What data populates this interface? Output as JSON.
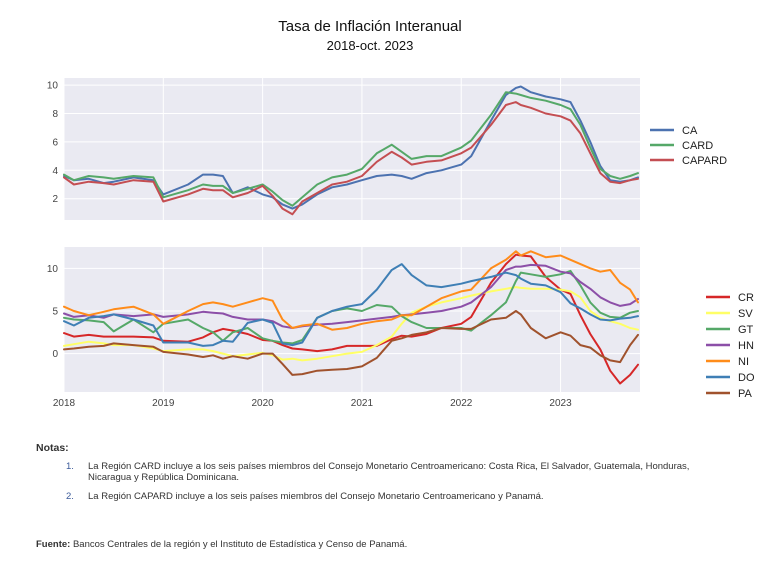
{
  "header": {
    "title": "Tasa de Inflación Interanual",
    "subtitle": "2018-oct. 2023"
  },
  "chart_data": [
    {
      "type": "line",
      "x_unit": "year",
      "x": [
        2018.0,
        2018.1,
        2018.25,
        2018.4,
        2018.5,
        2018.7,
        2018.9,
        2019.0,
        2019.25,
        2019.4,
        2019.5,
        2019.6,
        2019.7,
        2019.85,
        2020.0,
        2020.1,
        2020.2,
        2020.3,
        2020.4,
        2020.55,
        2020.7,
        2020.85,
        2021.0,
        2021.15,
        2021.3,
        2021.4,
        2021.5,
        2021.65,
        2021.8,
        2022.0,
        2022.1,
        2022.3,
        2022.45,
        2022.55,
        2022.6,
        2022.7,
        2022.85,
        2023.0,
        2023.1,
        2023.2,
        2023.3,
        2023.4,
        2023.5,
        2023.6,
        2023.7,
        2023.78
      ],
      "series": [
        {
          "name": "CA",
          "color": "#4c72b0",
          "values": [
            3.6,
            3.3,
            3.4,
            3.1,
            3.2,
            3.5,
            3.3,
            2.3,
            3.0,
            3.7,
            3.7,
            3.6,
            2.4,
            2.8,
            2.3,
            2.1,
            1.6,
            1.3,
            1.6,
            2.3,
            2.8,
            3.0,
            3.3,
            3.6,
            3.7,
            3.6,
            3.4,
            3.8,
            4.0,
            4.4,
            5.0,
            7.5,
            9.3,
            9.8,
            9.9,
            9.5,
            9.2,
            9.0,
            8.8,
            7.5,
            6.0,
            4.3,
            3.3,
            3.2,
            3.3,
            3.5
          ]
        },
        {
          "name": "CARD",
          "color": "#55a868",
          "values": [
            3.7,
            3.3,
            3.6,
            3.5,
            3.4,
            3.6,
            3.5,
            2.1,
            2.6,
            3.0,
            2.9,
            2.9,
            2.4,
            2.7,
            3.0,
            2.5,
            1.9,
            1.5,
            2.1,
            3.0,
            3.5,
            3.7,
            4.1,
            5.2,
            5.8,
            5.3,
            4.8,
            5.0,
            5.0,
            5.6,
            6.1,
            7.9,
            9.5,
            9.4,
            9.3,
            9.1,
            8.9,
            8.6,
            8.3,
            7.2,
            5.6,
            4.1,
            3.6,
            3.4,
            3.6,
            3.8
          ]
        },
        {
          "name": "CAPARD",
          "color": "#c44e52",
          "values": [
            3.5,
            3.0,
            3.2,
            3.1,
            3.0,
            3.3,
            3.2,
            1.8,
            2.3,
            2.7,
            2.6,
            2.6,
            2.1,
            2.4,
            2.9,
            2.2,
            1.3,
            0.9,
            1.8,
            2.4,
            3.0,
            3.2,
            3.6,
            4.6,
            5.3,
            4.9,
            4.4,
            4.6,
            4.7,
            5.2,
            5.6,
            7.2,
            8.6,
            8.8,
            8.6,
            8.4,
            8.0,
            7.8,
            7.5,
            6.6,
            5.2,
            3.8,
            3.2,
            3.1,
            3.3,
            3.4
          ]
        }
      ],
      "ylim": [
        0.5,
        10.5
      ],
      "yticks": [
        2,
        4,
        6,
        8,
        10
      ],
      "legend_position": "right"
    },
    {
      "type": "line",
      "x_unit": "year",
      "x": [
        2018.0,
        2018.1,
        2018.25,
        2018.4,
        2018.5,
        2018.7,
        2018.9,
        2019.0,
        2019.25,
        2019.4,
        2019.5,
        2019.6,
        2019.7,
        2019.85,
        2020.0,
        2020.1,
        2020.2,
        2020.3,
        2020.4,
        2020.55,
        2020.7,
        2020.85,
        2021.0,
        2021.15,
        2021.3,
        2021.4,
        2021.5,
        2021.65,
        2021.8,
        2022.0,
        2022.1,
        2022.3,
        2022.45,
        2022.55,
        2022.6,
        2022.7,
        2022.85,
        2023.0,
        2023.1,
        2023.2,
        2023.3,
        2023.4,
        2023.5,
        2023.6,
        2023.7,
        2023.78
      ],
      "series": [
        {
          "name": "CR",
          "color": "#d62728",
          "values": [
            2.4,
            2.0,
            2.2,
            2.0,
            2.0,
            2.0,
            1.9,
            1.5,
            1.4,
            1.9,
            2.5,
            2.9,
            2.7,
            2.3,
            1.6,
            1.5,
            1.0,
            0.6,
            0.5,
            0.3,
            0.5,
            0.9,
            0.9,
            0.9,
            1.7,
            2.1,
            2.0,
            2.3,
            3.0,
            3.5,
            4.3,
            8.3,
            10.5,
            11.6,
            11.5,
            11.4,
            9.0,
            7.5,
            7.0,
            4.5,
            2.3,
            0.5,
            -2.0,
            -3.5,
            -2.5,
            -1.3
          ]
        },
        {
          "name": "SV",
          "color": "#ffff66",
          "values": [
            0.9,
            1.1,
            1.4,
            1.2,
            1.0,
            1.0,
            0.6,
            0.3,
            0.5,
            0.5,
            0.3,
            0.0,
            -0.3,
            -0.1,
            0.1,
            -0.2,
            -0.7,
            -0.6,
            -0.8,
            -0.6,
            -0.3,
            0.0,
            0.2,
            1.0,
            2.0,
            3.5,
            4.8,
            5.5,
            6.0,
            6.5,
            6.8,
            7.3,
            7.6,
            7.8,
            7.7,
            7.6,
            7.6,
            7.5,
            7.3,
            6.6,
            5.0,
            4.2,
            3.8,
            3.5,
            3.0,
            2.8
          ]
        },
        {
          "name": "GT",
          "color": "#55a868",
          "values": [
            4.2,
            4.0,
            3.9,
            3.7,
            2.6,
            4.0,
            2.5,
            3.5,
            4.0,
            3.0,
            2.5,
            1.5,
            2.5,
            3.0,
            1.8,
            1.5,
            1.3,
            1.2,
            1.6,
            4.2,
            5.0,
            5.3,
            5.0,
            5.7,
            5.5,
            4.4,
            3.7,
            3.0,
            3.0,
            3.0,
            2.7,
            4.5,
            6.0,
            8.5,
            9.5,
            9.3,
            9.0,
            9.3,
            9.7,
            8.0,
            6.0,
            4.8,
            4.3,
            4.2,
            4.8,
            5.0
          ]
        },
        {
          "name": "HN",
          "color": "#8c4fa8",
          "values": [
            4.7,
            4.3,
            4.5,
            4.2,
            4.6,
            4.4,
            4.6,
            4.3,
            4.6,
            4.9,
            4.8,
            4.7,
            4.3,
            4.0,
            4.0,
            3.8,
            3.2,
            3.0,
            3.2,
            3.4,
            3.5,
            3.7,
            3.9,
            4.1,
            4.3,
            4.5,
            4.6,
            4.8,
            5.0,
            5.5,
            6.0,
            7.8,
            9.8,
            10.2,
            10.2,
            10.4,
            10.3,
            9.6,
            9.4,
            8.4,
            7.6,
            6.6,
            6.0,
            5.6,
            5.8,
            6.4
          ]
        },
        {
          "name": "NI",
          "color": "#ff8c1a",
          "values": [
            5.5,
            5.0,
            4.5,
            4.9,
            5.2,
            5.5,
            4.6,
            3.5,
            5.0,
            5.8,
            6.0,
            5.8,
            5.5,
            6.0,
            6.5,
            6.2,
            4.0,
            3.0,
            3.3,
            3.5,
            2.8,
            3.0,
            3.5,
            3.8,
            4.0,
            4.5,
            4.5,
            5.5,
            6.5,
            7.3,
            7.5,
            10.0,
            11.0,
            12.0,
            11.5,
            12.0,
            11.3,
            11.5,
            11.0,
            10.5,
            10.0,
            9.6,
            9.8,
            8.3,
            7.5,
            6.0
          ]
        },
        {
          "name": "DO",
          "color": "#3f7fb5",
          "values": [
            3.8,
            3.3,
            4.2,
            4.4,
            4.6,
            4.0,
            3.3,
            1.3,
            1.3,
            0.9,
            1.0,
            1.5,
            1.4,
            3.6,
            4.0,
            3.6,
            1.2,
            1.0,
            1.3,
            4.2,
            5.0,
            5.5,
            5.8,
            7.5,
            9.8,
            10.5,
            9.2,
            8.0,
            7.8,
            8.2,
            8.5,
            9.0,
            9.5,
            9.2,
            8.8,
            8.2,
            8.0,
            7.2,
            5.9,
            5.3,
            4.6,
            4.0,
            3.9,
            4.1,
            4.2,
            4.4
          ]
        },
        {
          "name": "PA",
          "color": "#a0522d",
          "values": [
            0.5,
            0.6,
            0.8,
            0.9,
            1.2,
            1.0,
            0.8,
            0.2,
            -0.1,
            -0.4,
            -0.2,
            -0.6,
            -0.3,
            -0.6,
            0.0,
            0.0,
            -1.2,
            -2.5,
            -2.4,
            -2.0,
            -1.9,
            -1.8,
            -1.5,
            -0.5,
            1.5,
            1.8,
            2.2,
            2.5,
            3.0,
            2.9,
            2.9,
            4.0,
            4.2,
            5.0,
            4.6,
            3.0,
            1.8,
            2.5,
            2.1,
            1.0,
            0.7,
            -0.2,
            -0.8,
            -1.0,
            1.0,
            2.2
          ]
        }
      ],
      "ylim": [
        -4.5,
        12.5
      ],
      "yticks": [
        0,
        5,
        10
      ],
      "xticks": [
        2018,
        2019,
        2020,
        2021,
        2022,
        2023
      ],
      "legend_position": "right"
    }
  ],
  "notes": {
    "title": "Notas:",
    "items": [
      {
        "num": "1.",
        "text": "La Región CARD incluye a los seis países miembros del Consejo Monetario Centroamericano: Costa Rica, El Salvador, Guatemala, Honduras, Nicaragua y República Dominicana."
      },
      {
        "num": "2.",
        "text": "La Región CAPARD incluye a los seis países miembros del Consejo Monetario Centroamericano y Panamá."
      }
    ]
  },
  "source": {
    "label": "Fuente:",
    "text": " Bancos Centrales de la región y el Instituto de Estadística y Censo de Panamá."
  }
}
